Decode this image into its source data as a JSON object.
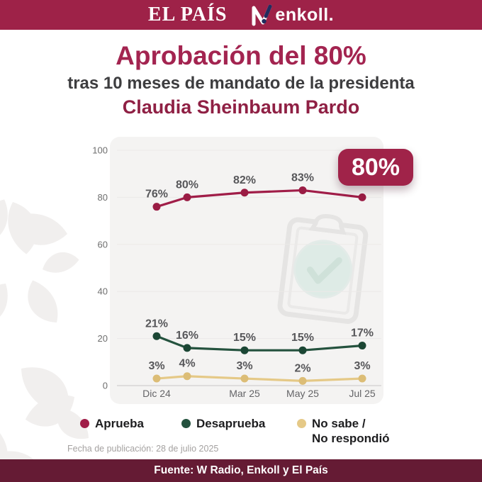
{
  "header": {
    "brand_left": "EL PAÍS",
    "brand_right": "enkoll."
  },
  "title": {
    "line1": "Aprobación del 80%",
    "line2": "tras 10 meses de mandato de la presidenta",
    "line3": "Claudia Sheinbaum Pardo"
  },
  "chart_data": {
    "type": "line",
    "title": "Aprobación del 80% tras 10 meses de mandato de la presidenta Claudia Sheinbaum Pardo",
    "categories": [
      "Dic 24",
      "",
      "Mar 25",
      "May 25",
      "Jul 25"
    ],
    "x_ticks": [
      {
        "label": "Dic 24",
        "index": 0
      },
      {
        "label": "Mar 25",
        "index": 2
      },
      {
        "label": "May 25",
        "index": 3
      },
      {
        "label": "Jul 25",
        "index": 4
      }
    ],
    "series": [
      {
        "name": "Aprueba",
        "color": "#a01d48",
        "dot_color": "#9a1c44",
        "values": [
          76,
          80,
          82,
          83,
          80
        ]
      },
      {
        "name": "Desaprueba",
        "color": "#24523e",
        "dot_color": "#1b4634",
        "values": [
          21,
          16,
          15,
          15,
          17
        ]
      },
      {
        "name": "No sabe / No respondió",
        "color": "#e5c987",
        "dot_color": "#dcbd76",
        "values": [
          3,
          4,
          3,
          2,
          3
        ]
      }
    ],
    "ylim": [
      0,
      100
    ],
    "yticks": [
      0,
      20,
      40,
      60,
      80,
      100
    ],
    "grid": true,
    "legend_position": "bottom",
    "highlight": {
      "series_index": 0,
      "point_index": 4,
      "label": "80%"
    }
  },
  "legend": {
    "items": [
      {
        "label": "Aprueba",
        "color": "#a01d48"
      },
      {
        "label": "Desaprueba",
        "color": "#24523e"
      },
      {
        "label": "No sabe /\nNo respondió",
        "color": "#e5c987"
      }
    ]
  },
  "footnote": "Fecha de publicación: 28 de julio 2025",
  "footer": {
    "source": "Fuente: W Radio, Enkoll y El País"
  },
  "colors": {
    "brand_bar": "#9e2248",
    "title_text": "#a32450",
    "name_text": "#8f2044",
    "footer_bar": "#651b34",
    "badge": "#a02349",
    "panel": "#f4f3f2",
    "label_gray": "#57575a"
  }
}
